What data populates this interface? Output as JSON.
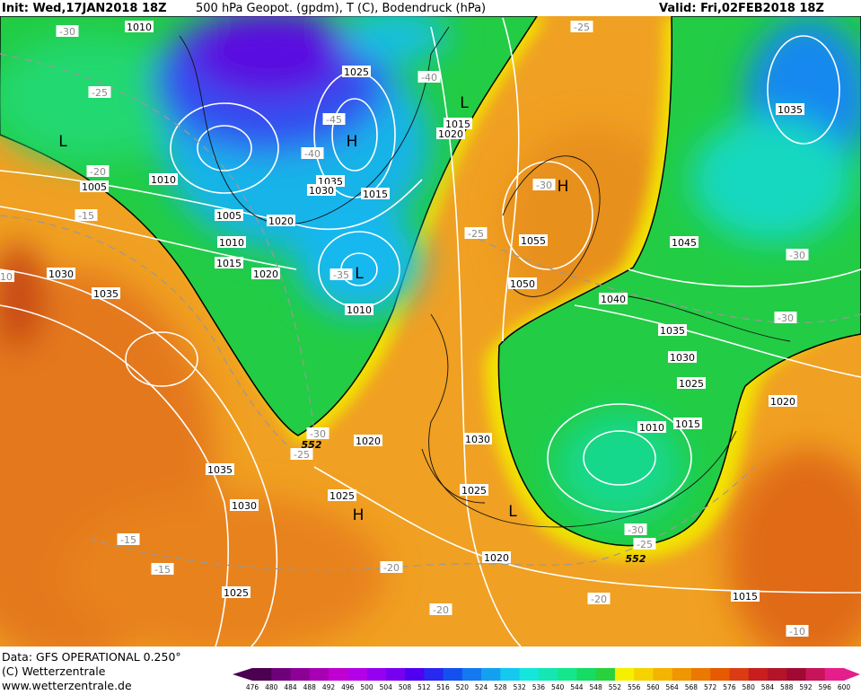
{
  "header": {
    "init": "Init: Wed,17JAN2018 18Z",
    "title": "500 hPa Geopot. (gpdm), T (C), Bodendruck (hPa)",
    "valid": "Valid: Fri,02FEB2018 18Z"
  },
  "footer": {
    "data": "Data: GFS OPERATIONAL 0.250°",
    "copyright": "(C) Wetterzentrale",
    "url": "www.wetterzentrale.de"
  },
  "map": {
    "isobar_labels": [
      "1010",
      "1025",
      "1015",
      "1020",
      "1035",
      "1030",
      "1015",
      "1010",
      "1005",
      "1005",
      "1020",
      "1010",
      "1015",
      "1020",
      "1030",
      "1035",
      "1055",
      "1050",
      "1045",
      "1040",
      "1035",
      "1030",
      "1025",
      "1010",
      "1010",
      "1015",
      "1020",
      "1020",
      "1030",
      "1025",
      "1025",
      "1035",
      "1030",
      "1020",
      "1025",
      "1015",
      "1035"
    ],
    "temperature_labels": [
      "-30",
      "-25",
      "-20",
      "-15",
      "-40",
      "-45",
      "-40",
      "-35",
      "-25",
      "-30",
      "-25",
      "-30",
      "-30",
      "-30",
      "-25",
      "-30",
      "-25",
      "-15",
      "-15",
      "-20",
      "-20",
      "-20",
      "-10",
      "10"
    ],
    "centers": [
      "L",
      "H",
      "L",
      "H",
      "L",
      "H",
      "L"
    ],
    "contour_labels": [
      "552",
      "552"
    ]
  },
  "colorbar": {
    "labels": [
      "476",
      "480",
      "484",
      "488",
      "492",
      "496",
      "500",
      "504",
      "508",
      "512",
      "516",
      "520",
      "524",
      "528",
      "532",
      "536",
      "540",
      "544",
      "548",
      "552",
      "556",
      "560",
      "564",
      "568",
      "572",
      "576",
      "580",
      "584",
      "588",
      "592",
      "596",
      "600"
    ],
    "colors": [
      "#4b0050",
      "#6e007a",
      "#8c0096",
      "#a800b4",
      "#c000d0",
      "#b400e6",
      "#9600f0",
      "#7800f0",
      "#5000f0",
      "#2828f0",
      "#1450f0",
      "#1478f0",
      "#14a0f0",
      "#14c8f0",
      "#14e6dc",
      "#14e6b4",
      "#14e68c",
      "#14dc64",
      "#28d23c",
      "#f5f000",
      "#f5d200",
      "#f5b400",
      "#f09600",
      "#eb7800",
      "#e65a00",
      "#dc3c14",
      "#c81e1e",
      "#b41428",
      "#a00a32",
      "#c8145a",
      "#e61e8c"
    ]
  }
}
